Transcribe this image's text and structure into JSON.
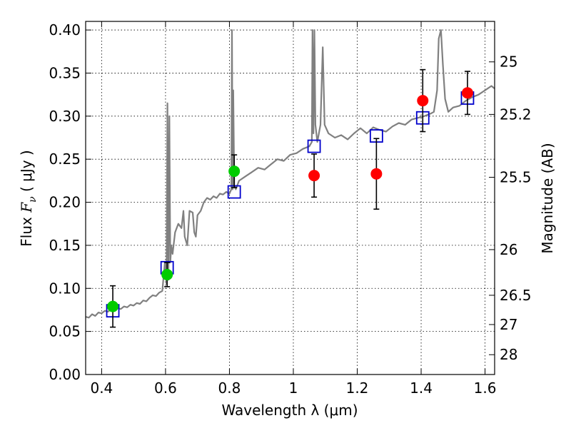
{
  "chart_data": {
    "type": "scatter",
    "title": "",
    "xlabel": "Wavelength  λ (μm)",
    "ylabel": {
      "prefix": "Flux  ",
      "symbol": "F",
      "subscript": "ν",
      "unit": "  ( μJy )"
    },
    "ylabel_right": "Magnitude (AB)",
    "xlim": [
      0.35,
      1.63
    ],
    "ylim": [
      0.0,
      0.41
    ],
    "grid": true,
    "x_ticks": [
      {
        "value": 0.4,
        "label": "0.4"
      },
      {
        "value": 0.6,
        "label": "0.6"
      },
      {
        "value": 0.8,
        "label": "0.8"
      },
      {
        "value": 1.0,
        "label": "1"
      },
      {
        "value": 1.2,
        "label": "1.2"
      },
      {
        "value": 1.4,
        "label": "1.4"
      },
      {
        "value": 1.6,
        "label": "1.6"
      }
    ],
    "y_ticks": [
      {
        "value": 0.0,
        "label": "0.00"
      },
      {
        "value": 0.05,
        "label": "0.05"
      },
      {
        "value": 0.1,
        "label": "0.10"
      },
      {
        "value": 0.15,
        "label": "0.15"
      },
      {
        "value": 0.2,
        "label": "0.20"
      },
      {
        "value": 0.25,
        "label": "0.25"
      },
      {
        "value": 0.3,
        "label": "0.30"
      },
      {
        "value": 0.35,
        "label": "0.35"
      },
      {
        "value": 0.4,
        "label": "0.40"
      }
    ],
    "right_ticks": [
      {
        "flux": 0.363,
        "label": "25"
      },
      {
        "flux": 0.302,
        "label": "25.2"
      },
      {
        "flux": 0.229,
        "label": "25.5"
      },
      {
        "flux": 0.145,
        "label": "26"
      },
      {
        "flux": 0.092,
        "label": "26.5"
      },
      {
        "flux": 0.058,
        "label": "27"
      },
      {
        "flux": 0.023,
        "label": "28"
      }
    ],
    "series": [
      {
        "kind": "spectrum-line",
        "color": "#808080",
        "points": [
          [
            0.35,
            0.067
          ],
          [
            0.36,
            0.066
          ],
          [
            0.37,
            0.07
          ],
          [
            0.38,
            0.068
          ],
          [
            0.39,
            0.072
          ],
          [
            0.4,
            0.071
          ],
          [
            0.41,
            0.074
          ],
          [
            0.42,
            0.073
          ],
          [
            0.43,
            0.076
          ],
          [
            0.44,
            0.075
          ],
          [
            0.45,
            0.077
          ],
          [
            0.46,
            0.076
          ],
          [
            0.47,
            0.079
          ],
          [
            0.48,
            0.078
          ],
          [
            0.49,
            0.081
          ],
          [
            0.5,
            0.08
          ],
          [
            0.51,
            0.083
          ],
          [
            0.52,
            0.082
          ],
          [
            0.53,
            0.086
          ],
          [
            0.54,
            0.085
          ],
          [
            0.55,
            0.089
          ],
          [
            0.56,
            0.092
          ],
          [
            0.57,
            0.091
          ],
          [
            0.58,
            0.095
          ],
          [
            0.59,
            0.097
          ],
          [
            0.598,
            0.13
          ],
          [
            0.603,
            0.105
          ],
          [
            0.606,
            0.315
          ],
          [
            0.609,
            0.11
          ],
          [
            0.612,
            0.3
          ],
          [
            0.615,
            0.13
          ],
          [
            0.618,
            0.15
          ],
          [
            0.622,
            0.14
          ],
          [
            0.63,
            0.165
          ],
          [
            0.64,
            0.175
          ],
          [
            0.65,
            0.17
          ],
          [
            0.656,
            0.19
          ],
          [
            0.66,
            0.16
          ],
          [
            0.668,
            0.15
          ],
          [
            0.675,
            0.19
          ],
          [
            0.685,
            0.188
          ],
          [
            0.69,
            0.165
          ],
          [
            0.695,
            0.16
          ],
          [
            0.7,
            0.185
          ],
          [
            0.71,
            0.19
          ],
          [
            0.72,
            0.2
          ],
          [
            0.73,
            0.205
          ],
          [
            0.74,
            0.203
          ],
          [
            0.75,
            0.207
          ],
          [
            0.76,
            0.205
          ],
          [
            0.77,
            0.21
          ],
          [
            0.78,
            0.209
          ],
          [
            0.79,
            0.212
          ],
          [
            0.8,
            0.21
          ],
          [
            0.806,
            0.215
          ],
          [
            0.808,
            0.4
          ],
          [
            0.81,
            0.215
          ],
          [
            0.812,
            0.33
          ],
          [
            0.815,
            0.22
          ],
          [
            0.82,
            0.215
          ],
          [
            0.83,
            0.225
          ],
          [
            0.85,
            0.23
          ],
          [
            0.87,
            0.235
          ],
          [
            0.89,
            0.24
          ],
          [
            0.91,
            0.238
          ],
          [
            0.93,
            0.244
          ],
          [
            0.95,
            0.25
          ],
          [
            0.97,
            0.248
          ],
          [
            0.99,
            0.255
          ],
          [
            1.01,
            0.257
          ],
          [
            1.03,
            0.262
          ],
          [
            1.05,
            0.265
          ],
          [
            1.058,
            0.27
          ],
          [
            1.06,
            0.4
          ],
          [
            1.063,
            0.28
          ],
          [
            1.066,
            0.4
          ],
          [
            1.069,
            0.29
          ],
          [
            1.075,
            0.27
          ],
          [
            1.085,
            0.29
          ],
          [
            1.092,
            0.38
          ],
          [
            1.098,
            0.29
          ],
          [
            1.11,
            0.28
          ],
          [
            1.13,
            0.275
          ],
          [
            1.15,
            0.278
          ],
          [
            1.17,
            0.273
          ],
          [
            1.19,
            0.28
          ],
          [
            1.21,
            0.286
          ],
          [
            1.23,
            0.28
          ],
          [
            1.25,
            0.287
          ],
          [
            1.27,
            0.284
          ],
          [
            1.29,
            0.282
          ],
          [
            1.31,
            0.288
          ],
          [
            1.33,
            0.292
          ],
          [
            1.35,
            0.29
          ],
          [
            1.37,
            0.296
          ],
          [
            1.39,
            0.298
          ],
          [
            1.41,
            0.3
          ],
          [
            1.43,
            0.303
          ],
          [
            1.44,
            0.305
          ],
          [
            1.45,
            0.33
          ],
          [
            1.455,
            0.39
          ],
          [
            1.462,
            0.4
          ],
          [
            1.468,
            0.36
          ],
          [
            1.475,
            0.32
          ],
          [
            1.485,
            0.305
          ],
          [
            1.5,
            0.31
          ],
          [
            1.52,
            0.312
          ],
          [
            1.54,
            0.318
          ],
          [
            1.56,
            0.322
          ],
          [
            1.58,
            0.325
          ],
          [
            1.6,
            0.33
          ],
          [
            1.62,
            0.335
          ],
          [
            1.63,
            0.332
          ]
        ]
      },
      {
        "kind": "model-boxes",
        "color": "#0000cc",
        "points": [
          [
            0.435,
            0.074
          ],
          [
            0.605,
            0.124
          ],
          [
            0.815,
            0.212
          ],
          [
            1.065,
            0.265
          ],
          [
            1.26,
            0.277
          ],
          [
            1.405,
            0.298
          ],
          [
            1.545,
            0.321
          ]
        ]
      },
      {
        "kind": "observed-points",
        "points": [
          {
            "x": 0.435,
            "y": 0.079,
            "err": 0.024,
            "color": "#00cc00"
          },
          {
            "x": 0.605,
            "y": 0.116,
            "err": 0.014,
            "color": "#00cc00"
          },
          {
            "x": 0.815,
            "y": 0.236,
            "err": 0.019,
            "color": "#00cc00"
          },
          {
            "x": 1.065,
            "y": 0.231,
            "err": 0.025,
            "color": "#ff0000"
          },
          {
            "x": 1.26,
            "y": 0.233,
            "err": 0.041,
            "color": "#ff0000"
          },
          {
            "x": 1.405,
            "y": 0.318,
            "err": 0.036,
            "color": "#ff0000"
          },
          {
            "x": 1.545,
            "y": 0.327,
            "err": 0.025,
            "color": "#ff0000"
          }
        ]
      }
    ]
  }
}
